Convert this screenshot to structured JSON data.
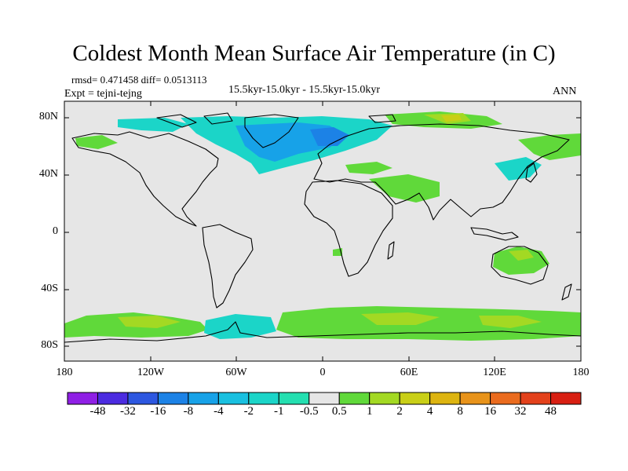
{
  "title": "Coldest Month Mean Surface Air Temperature (in C)",
  "stats": "rmsd= 0.471458 diff= 0.0513113",
  "experiment": "Expt = tejni-tejng",
  "period": "15.5kyr-15.0kyr - 15.5kyr-15.0kyr",
  "season": "ANN",
  "lat_labels": [
    "80N",
    "40N",
    "0",
    "40S",
    "80S"
  ],
  "lon_labels": [
    "180",
    "120W",
    "60W",
    "0",
    "60E",
    "120E",
    "180"
  ],
  "colorbar": {
    "labels": [
      "-48",
      "-32",
      "-16",
      "-8",
      "-4",
      "-2",
      "-1",
      "-0.5",
      "0.5",
      "1",
      "2",
      "4",
      "8",
      "16",
      "32",
      "48"
    ],
    "colors": [
      "#8f1fe5",
      "#4b2be0",
      "#2d57e0",
      "#1c82e6",
      "#17a2e8",
      "#19c0e0",
      "#1bd5c8",
      "#24dfb0",
      "#e6e6e6",
      "#60d93a",
      "#a3d923",
      "#c9cf17",
      "#ddb410",
      "#e8931a",
      "#ea6b1e",
      "#e3411b",
      "#d81f12"
    ]
  },
  "colors": {
    "background": "#e6e6e6",
    "coast": "#000000"
  }
}
